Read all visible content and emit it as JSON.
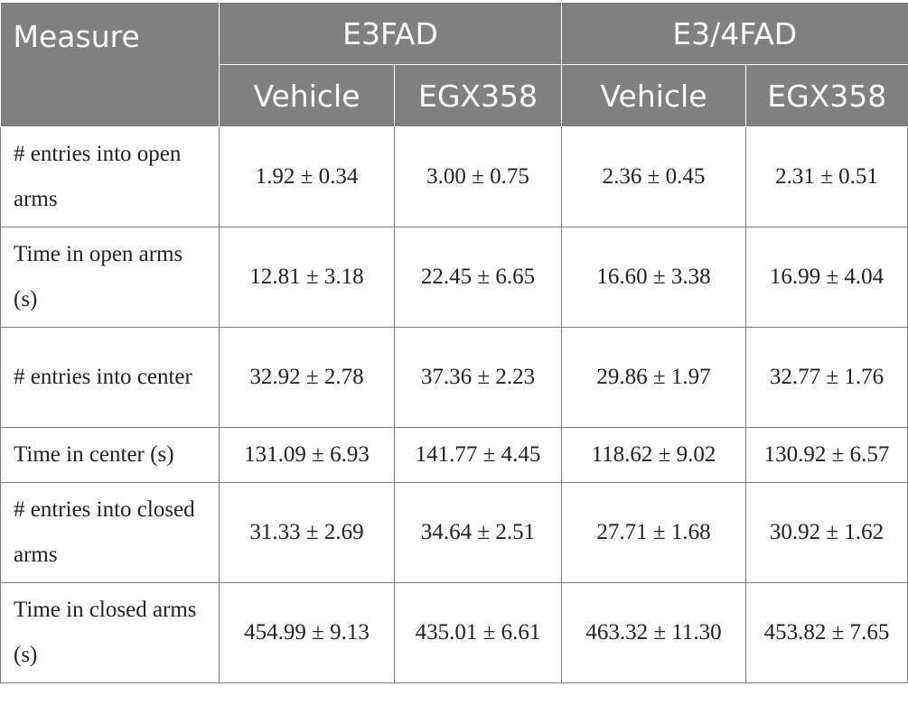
{
  "table": {
    "header": {
      "measure": "Measure",
      "groups": [
        "E3FAD",
        "E3/4FAD"
      ],
      "subheaders": [
        "Vehicle",
        "EGX358",
        "Vehicle",
        "EGX358"
      ]
    },
    "rows": [
      {
        "label": "# entries into open arms",
        "values": [
          "1.92 ± 0.34",
          "3.00 ± 0.75",
          "2.36 ± 0.45",
          "2.31 ± 0.51"
        ]
      },
      {
        "label": "Time in open arms (s)",
        "values": [
          "12.81 ± 3.18",
          "22.45 ± 6.65",
          "16.60 ± 3.38",
          "16.99 ± 4.04"
        ]
      },
      {
        "label": "# entries into center",
        "values": [
          "32.92 ± 2.78",
          "37.36 ± 2.23",
          "29.86 ± 1.97",
          "32.77 ± 1.76"
        ]
      },
      {
        "label": "Time in center (s)",
        "values": [
          "131.09 ± 6.93",
          "141.77 ± 4.45",
          "118.62 ± 9.02",
          "130.92 ± 6.57"
        ]
      },
      {
        "label": "# entries into closed arms",
        "values": [
          "31.33 ± 2.69",
          "34.64 ± 2.51",
          "27.71 ± 1.68",
          "30.92 ± 1.62"
        ]
      },
      {
        "label": "Time in closed arms (s)",
        "values": [
          "454.99 ± 9.13",
          "435.01 ± 6.61",
          "463.32 ± 11.30",
          "453.82 ± 7.65"
        ]
      }
    ]
  }
}
